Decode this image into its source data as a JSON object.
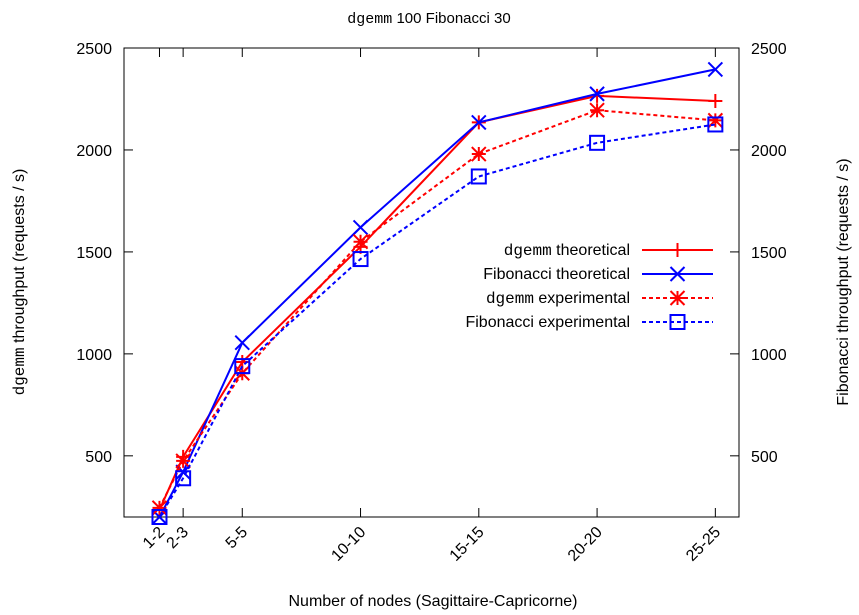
{
  "chart_data": {
    "type": "line",
    "title": {
      "mono": "dgemm",
      "rest": " 100 Fibonacci 30"
    },
    "xlabel": "Number of nodes (Sagittaire-Capricorne)",
    "ylabel_left": {
      "mono": "dgemm",
      "rest": " throughput (requests / s)"
    },
    "ylabel_right": "Fibonacci throughput (requests / s)",
    "categories": [
      "1-2",
      "2-3",
      "5-5",
      "10-10",
      "15-15",
      "20-20",
      "25-25"
    ],
    "x": [
      3,
      5,
      10,
      20,
      30,
      40,
      50
    ],
    "xlim": [
      0,
      52
    ],
    "ylim": [
      200,
      2500
    ],
    "yticks": [
      500,
      1000,
      1500,
      2000,
      2500
    ],
    "grid": false,
    "legend_position": "right-center",
    "series": [
      {
        "name": {
          "mono": "dgemm",
          "rest": " theoretical"
        },
        "color": "#ff0000",
        "dash": "solid",
        "marker": "plus",
        "values": [
          235,
          495,
          960,
          1525,
          2135,
          2265,
          2240
        ]
      },
      {
        "name": {
          "mono": "",
          "rest": "Fibonacci theoretical"
        },
        "color": "#0000ff",
        "dash": "solid",
        "marker": "cross",
        "values": [
          200,
          420,
          1055,
          1620,
          2135,
          2275,
          2395
        ]
      },
      {
        "name": {
          "mono": "dgemm",
          "rest": " experimental"
        },
        "color": "#ff0000",
        "dash": "dashed",
        "marker": "star",
        "values": [
          245,
          475,
          905,
          1550,
          1980,
          2195,
          2145
        ]
      },
      {
        "name": {
          "mono": "",
          "rest": "Fibonacci experimental"
        },
        "color": "#0000ff",
        "dash": "dashed",
        "marker": "square",
        "values": [
          200,
          390,
          940,
          1465,
          1870,
          2035,
          2125
        ]
      }
    ]
  }
}
